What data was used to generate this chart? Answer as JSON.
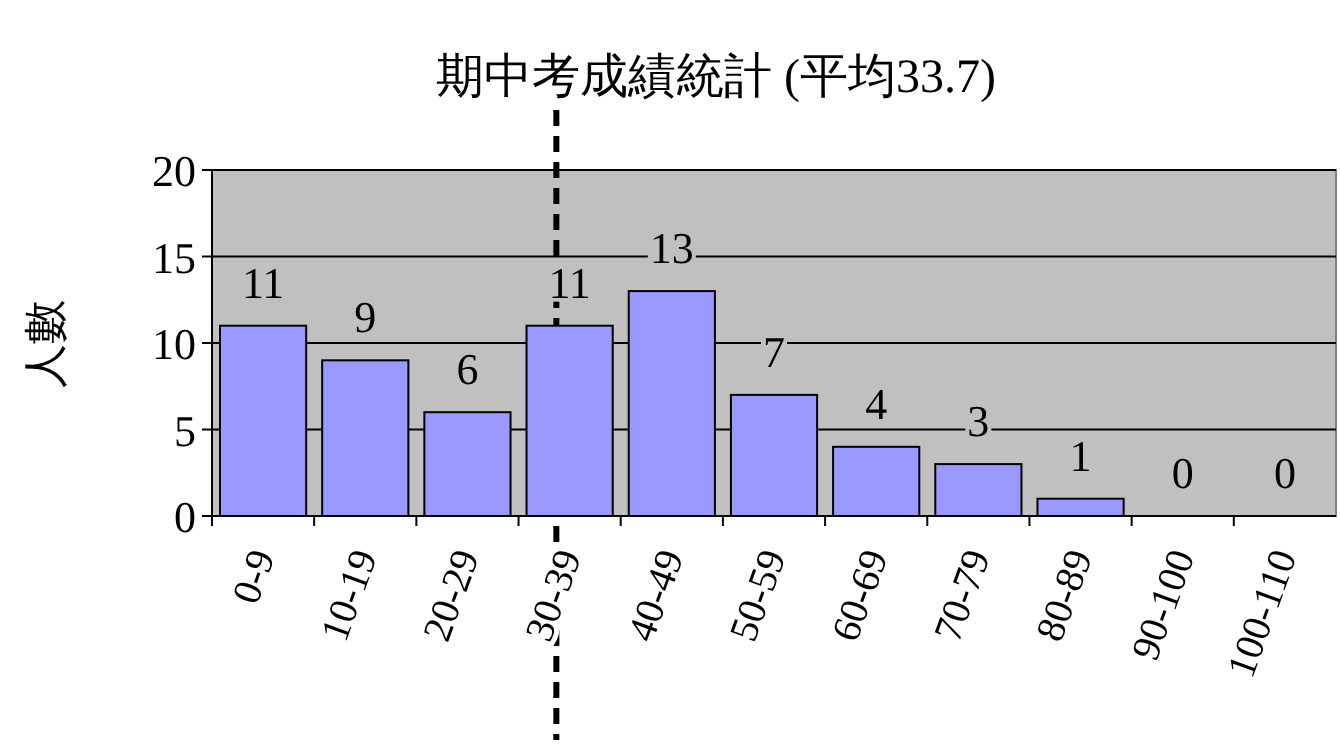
{
  "chart_data": {
    "type": "bar",
    "title": "期中考成績統計 (平均33.7)",
    "ylabel": "人數",
    "categories": [
      "0-9",
      "10-19",
      "20-29",
      "30-39",
      "40-49",
      "50-59",
      "60-69",
      "70-79",
      "80-89",
      "90-100",
      "100-110"
    ],
    "values": [
      11,
      9,
      6,
      11,
      13,
      7,
      4,
      3,
      1,
      0,
      0
    ],
    "color": "#9999ff",
    "ylim": [
      0,
      20
    ],
    "yticks": [
      0,
      5,
      10,
      15,
      20
    ],
    "grid": "y",
    "data_labels": true
  }
}
